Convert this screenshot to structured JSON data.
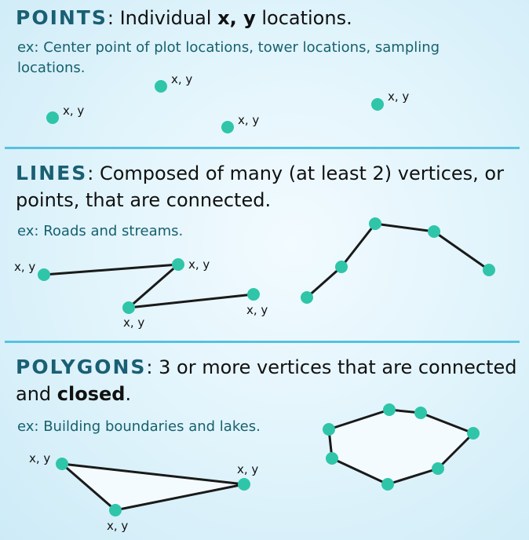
{
  "points": {
    "keyword": "POINTS",
    "sep": ": ",
    "desc_1": "Individual ",
    "desc_x": "x",
    "desc_2": ", ",
    "desc_y": "y",
    "desc_3": " locations.",
    "example": "ex: Center point of plot locations, tower locations, sampling locations.",
    "coord_label": "x, y"
  },
  "lines": {
    "keyword": "LINES",
    "sep": ": ",
    "desc": "Composed of many (at least 2) vertices, or points, that are connected.",
    "example": "ex: Roads and streams.",
    "coord_label": "x, y"
  },
  "polygons": {
    "keyword": "POLYGONS",
    "sep": ": ",
    "desc_1": "3 or more vertices that are connected and ",
    "desc_bold": "closed",
    "desc_2": ".",
    "example": "ex: Building boundaries and lakes.",
    "coord_label": "x, y"
  },
  "colors": {
    "vertex": "#2fc5a9",
    "edge": "#1a1a1a",
    "polygon_fill": "#f4fbfe",
    "keyword": "#1a5f73",
    "example_text": "#16616e",
    "divider": "#56c2e0"
  }
}
